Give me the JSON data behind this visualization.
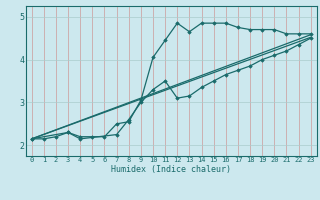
{
  "background_color": "#cce8ee",
  "grid_color": "#aacccc",
  "line_color": "#1a6b6b",
  "marker_color": "#1a6b6b",
  "xlabel": "Humidex (Indice chaleur)",
  "xlim": [
    -0.5,
    23.5
  ],
  "ylim": [
    1.75,
    5.25
  ],
  "yticks": [
    2,
    3,
    4,
    5
  ],
  "xticks": [
    0,
    1,
    2,
    3,
    4,
    5,
    6,
    7,
    8,
    9,
    10,
    11,
    12,
    13,
    14,
    15,
    16,
    17,
    18,
    19,
    20,
    21,
    22,
    23
  ],
  "line1_x": [
    0,
    1,
    2,
    3,
    4,
    5,
    6,
    7,
    8,
    9,
    10,
    11,
    12,
    13,
    14,
    15,
    16,
    17,
    18,
    19,
    20,
    21,
    22,
    23
  ],
  "line1_y": [
    2.15,
    2.15,
    2.2,
    2.3,
    2.2,
    2.2,
    2.2,
    2.5,
    2.55,
    3.05,
    4.05,
    4.45,
    4.85,
    4.65,
    4.85,
    4.85,
    4.85,
    4.75,
    4.7,
    4.7,
    4.7,
    4.6,
    4.6,
    4.6
  ],
  "line2_x": [
    0,
    3,
    4,
    7,
    8,
    9,
    10,
    11,
    12,
    13,
    14,
    15,
    16,
    17,
    18,
    19,
    20,
    21,
    22,
    23
  ],
  "line2_y": [
    2.15,
    2.3,
    2.15,
    2.25,
    2.6,
    3.0,
    3.3,
    3.5,
    3.1,
    3.15,
    3.35,
    3.5,
    3.65,
    3.75,
    3.85,
    4.0,
    4.1,
    4.2,
    4.35,
    4.5
  ],
  "line3_x": [
    0,
    23
  ],
  "line3_y": [
    2.15,
    4.58
  ],
  "line4_x": [
    0,
    23
  ],
  "line4_y": [
    2.15,
    4.52
  ]
}
